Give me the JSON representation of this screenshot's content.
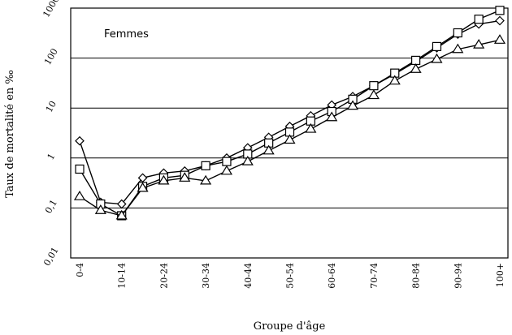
{
  "chart_data": {
    "type": "line",
    "title": "",
    "annotation": "Femmes",
    "xlabel": "Groupe d'âge",
    "ylabel": "Taux de mortalité en ‰",
    "yscale": "log",
    "ylim": [
      0.01,
      1000
    ],
    "yticks": [
      0.01,
      0.1,
      1,
      10,
      100,
      1000
    ],
    "ytick_labels": [
      "0,01",
      "0,1",
      "1",
      "10",
      "100",
      "1000"
    ],
    "grid": "horizontal",
    "categories": [
      "0-4",
      "5-9",
      "10-14",
      "15-19",
      "20-24",
      "25-29",
      "30-34",
      "35-39",
      "40-44",
      "45-49",
      "50-54",
      "55-59",
      "60-64",
      "65-69",
      "70-74",
      "75-79",
      "80-84",
      "85-89",
      "90-94",
      "95-99",
      "100+"
    ],
    "shown_xtick_labels": [
      "0-4",
      "10-14",
      "20-24",
      "30-34",
      "40-44",
      "50-54",
      "60-64",
      "70-74",
      "80-84",
      "90-94",
      "100+"
    ],
    "series": [
      {
        "marker": "diamond",
        "values": [
          2.2,
          0.13,
          0.12,
          0.4,
          0.5,
          0.55,
          0.7,
          1.0,
          1.6,
          2.6,
          4.3,
          7.0,
          11.5,
          17,
          28,
          48,
          85,
          160,
          300,
          480,
          560
        ]
      },
      {
        "marker": "square",
        "values": [
          0.6,
          0.12,
          0.07,
          0.27,
          0.4,
          0.45,
          0.7,
          0.85,
          1.2,
          2.0,
          3.3,
          5.5,
          8.5,
          15,
          28,
          50,
          90,
          170,
          320,
          600,
          900
        ]
      },
      {
        "marker": "triangle",
        "values": [
          0.17,
          0.09,
          0.07,
          0.25,
          0.35,
          0.4,
          0.35,
          0.55,
          0.85,
          1.4,
          2.3,
          3.8,
          6.5,
          11,
          18,
          35,
          60,
          95,
          150,
          185,
          230
        ]
      }
    ]
  }
}
